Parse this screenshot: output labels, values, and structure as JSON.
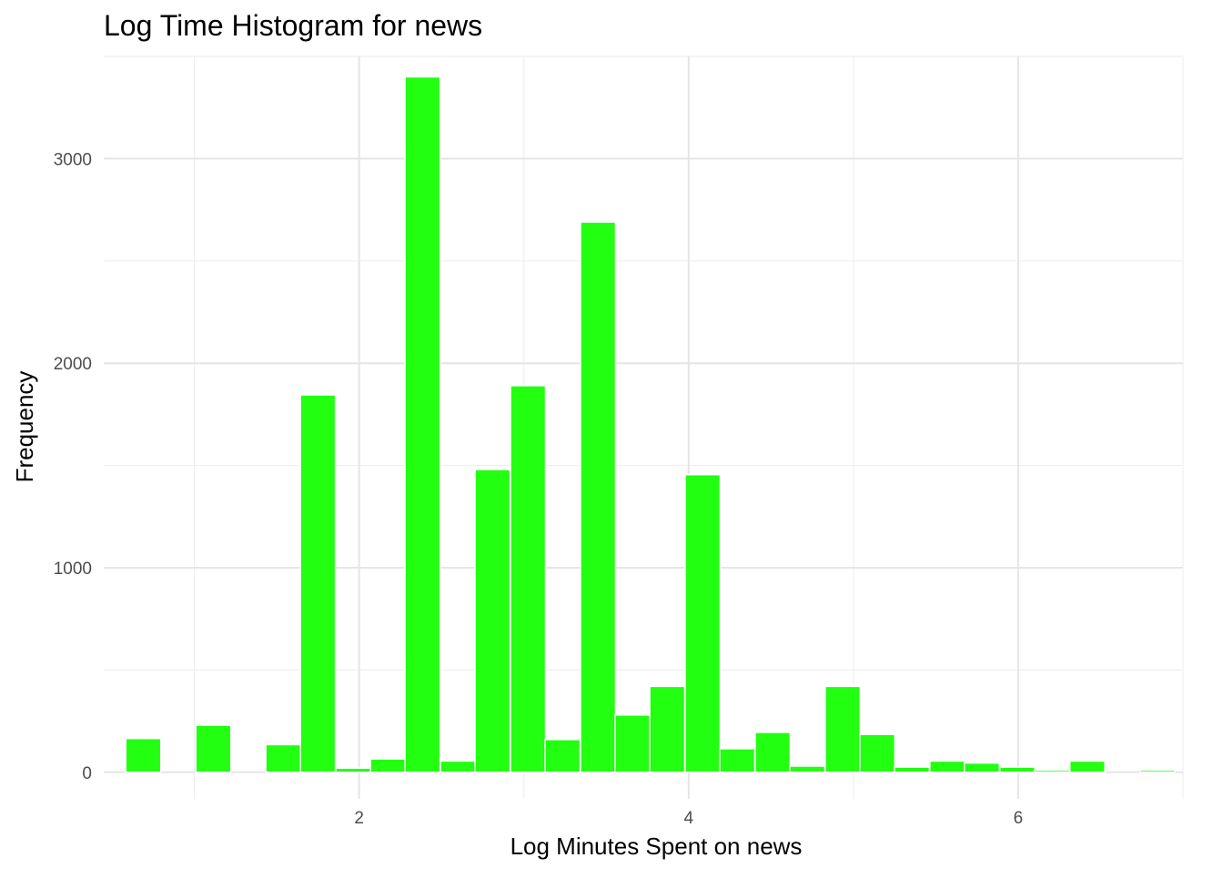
{
  "chart_data": {
    "type": "bar",
    "title": "Log Time Histogram for news",
    "xlabel": "Log Minutes Spent on news",
    "ylabel": "Frequency",
    "bar_color": "#22ff11",
    "background": "#ffffff",
    "grid": true,
    "xlim": [
      0.45,
      7.0
    ],
    "ylim": [
      -130,
      3500
    ],
    "x_ticks": [
      2,
      4,
      6
    ],
    "x_tick_labels": [
      "2",
      "4",
      "6"
    ],
    "y_ticks": [
      0,
      1000,
      2000,
      3000
    ],
    "y_tick_labels": [
      "0",
      "1000",
      "2000",
      "3000"
    ],
    "bin_width": 0.2125,
    "bins": [
      {
        "x": 0.69,
        "value": 165
      },
      {
        "x": 0.905,
        "value": 0
      },
      {
        "x": 1.115,
        "value": 230
      },
      {
        "x": 1.325,
        "value": 0
      },
      {
        "x": 1.54,
        "value": 135
      },
      {
        "x": 1.75,
        "value": 1845
      },
      {
        "x": 1.965,
        "value": 20
      },
      {
        "x": 2.175,
        "value": 65
      },
      {
        "x": 2.385,
        "value": 3400
      },
      {
        "x": 2.6,
        "value": 55
      },
      {
        "x": 2.81,
        "value": 1480
      },
      {
        "x": 3.025,
        "value": 1890
      },
      {
        "x": 3.235,
        "value": 160
      },
      {
        "x": 3.45,
        "value": 2690
      },
      {
        "x": 3.66,
        "value": 280
      },
      {
        "x": 3.87,
        "value": 420
      },
      {
        "x": 4.085,
        "value": 1455
      },
      {
        "x": 4.295,
        "value": 115
      },
      {
        "x": 4.51,
        "value": 195
      },
      {
        "x": 4.72,
        "value": 30
      },
      {
        "x": 4.935,
        "value": 420
      },
      {
        "x": 5.145,
        "value": 185
      },
      {
        "x": 5.355,
        "value": 25
      },
      {
        "x": 5.57,
        "value": 55
      },
      {
        "x": 5.78,
        "value": 45
      },
      {
        "x": 5.995,
        "value": 25
      },
      {
        "x": 6.205,
        "value": 10
      },
      {
        "x": 6.42,
        "value": 55
      },
      {
        "x": 6.63,
        "value": 0
      },
      {
        "x": 6.845,
        "value": 10
      }
    ]
  }
}
